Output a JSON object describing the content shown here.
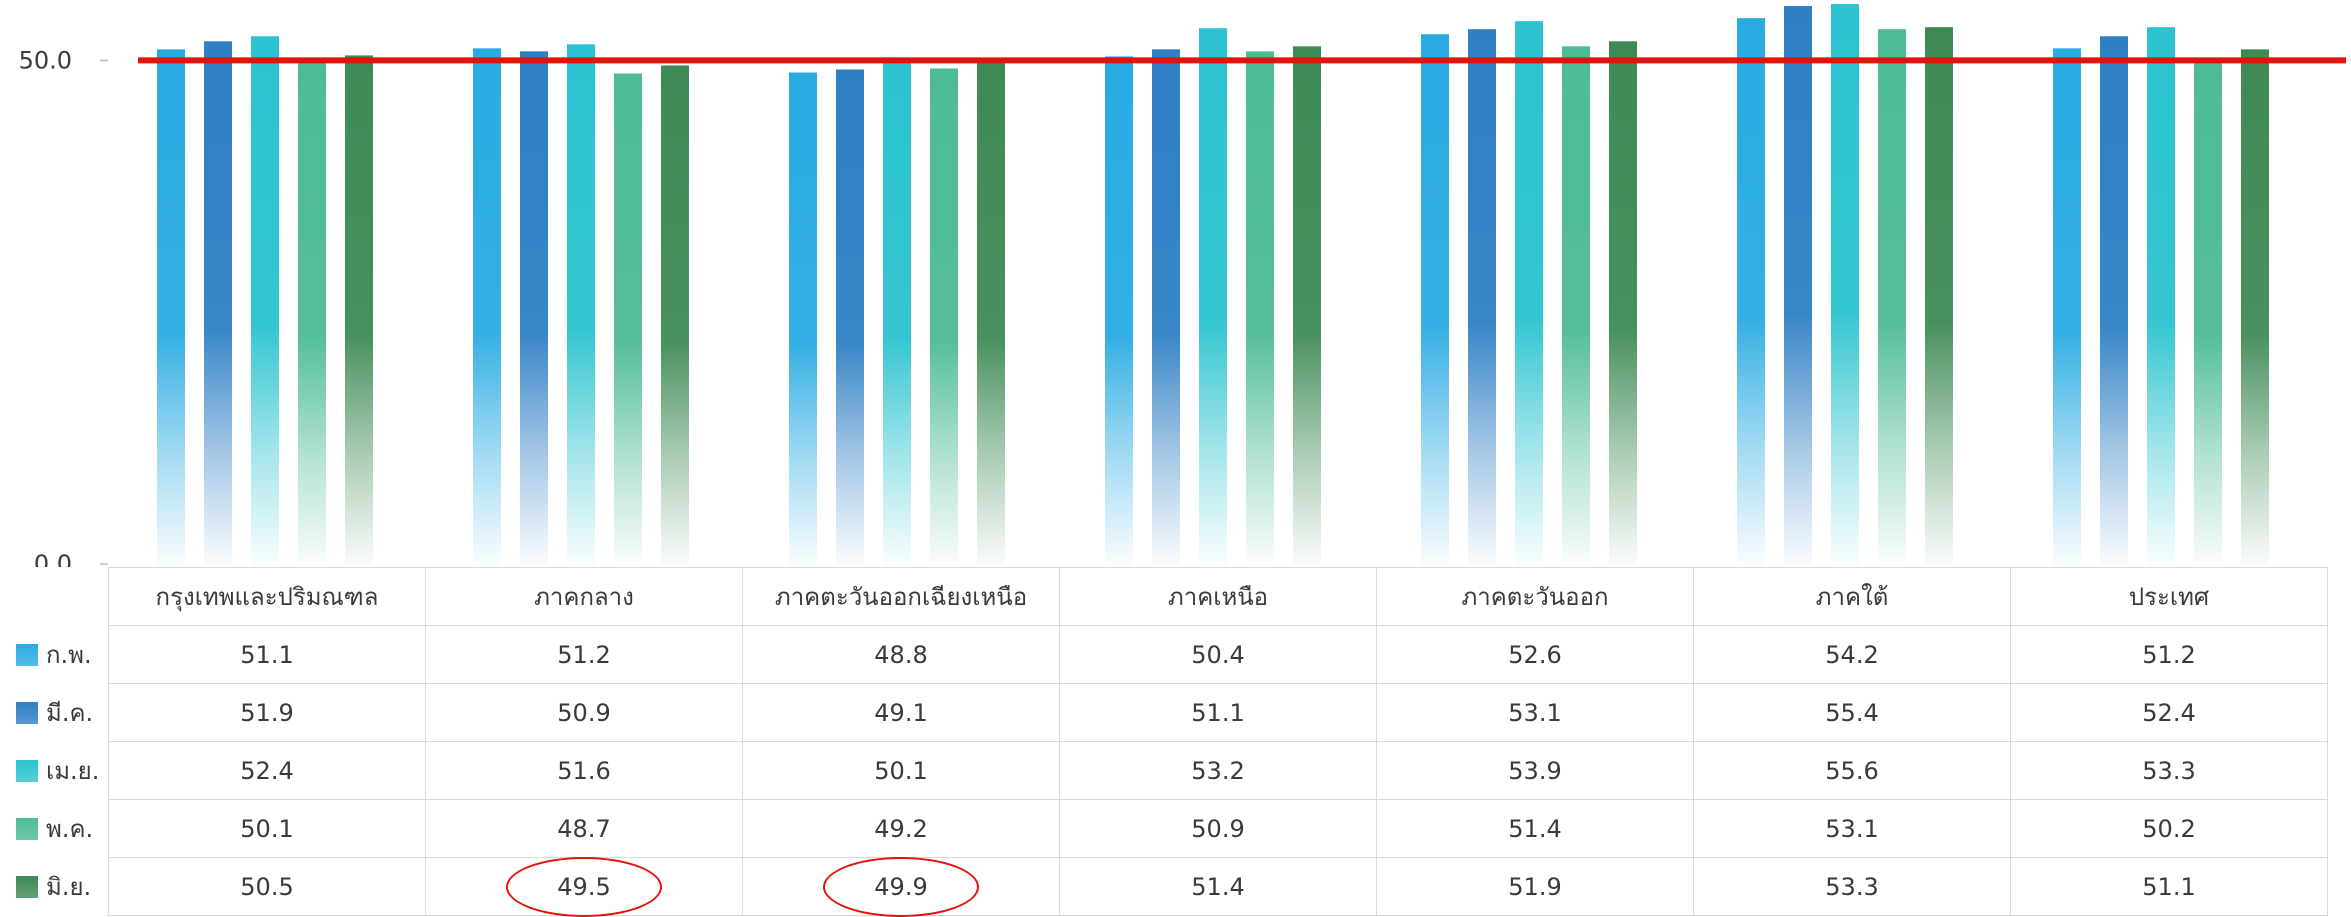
{
  "chart_data": {
    "type": "bar",
    "categories": [
      "กรุงเทพและปริมณฑล",
      "ภาคกลาง",
      "ภาคตะวันออกเฉียงเหนือ",
      "ภาคเหนือ",
      "ภาคตะวันออก",
      "ภาคใต้",
      "ประเทศ"
    ],
    "series": [
      {
        "name": "ก.พ.",
        "color": "#29abe2",
        "values": [
          51.1,
          51.2,
          48.8,
          50.4,
          52.6,
          54.2,
          51.2
        ]
      },
      {
        "name": "มี.ค.",
        "color": "#2e7fc4",
        "values": [
          51.9,
          50.9,
          49.1,
          51.1,
          53.1,
          55.4,
          52.4
        ]
      },
      {
        "name": "เม.ย.",
        "color": "#2ac3cf",
        "values": [
          52.4,
          51.6,
          50.1,
          53.2,
          53.9,
          55.6,
          53.3
        ]
      },
      {
        "name": "พ.ค.",
        "color": "#4dbb96",
        "values": [
          50.1,
          48.7,
          49.2,
          50.9,
          51.4,
          53.1,
          50.2
        ]
      },
      {
        "name": "มิ.ย.",
        "color": "#3e8a55",
        "values": [
          50.5,
          49.5,
          49.9,
          51.4,
          51.9,
          53.3,
          51.1
        ]
      }
    ],
    "yticks": [
      "0.0",
      "50.0"
    ],
    "axis_scale": {
      "value_at_top_edge": 56.0
    },
    "reference_line": {
      "value": 50.0,
      "color": "#e3120b"
    },
    "circled_cells": [
      {
        "series": "มิ.ย.",
        "category": "ภาคกลาง"
      },
      {
        "series": "มิ.ย.",
        "category": "ภาคตะวันออกเฉียงเหนือ"
      }
    ],
    "legend": "data-table",
    "grid": false
  }
}
